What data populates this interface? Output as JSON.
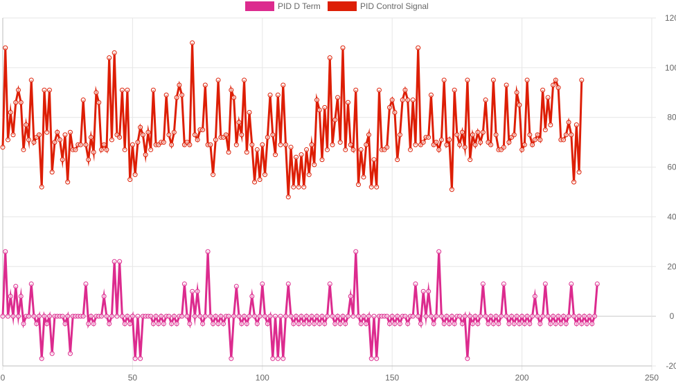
{
  "chart_data": {
    "type": "line",
    "title": "",
    "xlabel": "",
    "ylabel": "",
    "xlim": [
      0,
      250
    ],
    "ylim": [
      -20,
      120
    ],
    "x_ticks": [
      0,
      50,
      100,
      150,
      200,
      250
    ],
    "y_ticks": [
      -20,
      0,
      20,
      40,
      60,
      80,
      100,
      120
    ],
    "x_tick_labels": [
      "0",
      "50",
      "100",
      "150",
      "200",
      "250"
    ],
    "y_tick_labels": [
      "-20",
      "0",
      "20",
      "40",
      "60",
      "80",
      "100",
      "120"
    ],
    "grid": true,
    "legend_position": "top-center",
    "series": [
      {
        "name": "PID D Term",
        "color": "#dc2b8e",
        "values": [
          0,
          26,
          0,
          8,
          0,
          12,
          0,
          8,
          -3,
          0,
          0,
          13,
          0,
          -3,
          0,
          -17,
          0,
          -3,
          0,
          -15,
          0,
          0,
          0,
          0,
          -3,
          0,
          -15,
          0,
          0,
          0,
          0,
          0,
          13,
          -3,
          0,
          -3,
          0,
          0,
          0,
          8,
          0,
          -3,
          0,
          22,
          0,
          22,
          0,
          -3,
          0,
          -3,
          0,
          -17,
          0,
          -17,
          0,
          0,
          0,
          0,
          -3,
          0,
          -3,
          0,
          -3,
          0,
          0,
          -3,
          0,
          -3,
          0,
          0,
          13,
          0,
          -3,
          10,
          0,
          10,
          0,
          -3,
          0,
          26,
          0,
          -3,
          0,
          -3,
          0,
          -3,
          0,
          0,
          -17,
          0,
          12,
          0,
          -3,
          0,
          -3,
          0,
          8,
          0,
          -3,
          0,
          13,
          0,
          -3,
          0,
          -17,
          0,
          -17,
          0,
          -17,
          0,
          13,
          0,
          -3,
          0,
          -3,
          0,
          -3,
          0,
          -3,
          0,
          -3,
          0,
          -3,
          0,
          -3,
          0,
          13,
          0,
          -3,
          0,
          -3,
          0,
          -3,
          0,
          8,
          0,
          26,
          0,
          -3,
          0,
          -3,
          0,
          -17,
          0,
          -17,
          0,
          0,
          0,
          0,
          -3,
          0,
          -3,
          0,
          -3,
          0,
          0,
          -3,
          0,
          0,
          13,
          0,
          -3,
          10,
          0,
          10,
          0,
          -3,
          0,
          26,
          0,
          -3,
          0,
          -3,
          0,
          -3,
          0,
          0,
          -3,
          0,
          -17,
          0,
          -3,
          0,
          -3,
          0,
          13,
          0,
          -3,
          0,
          -3,
          0,
          -3,
          0,
          13,
          0,
          -3,
          0,
          -3,
          0,
          -3,
          0,
          -3,
          0,
          -3,
          0,
          8,
          0,
          -3,
          0,
          13,
          0,
          -3,
          0,
          -3,
          0,
          -3,
          0,
          -3,
          0,
          13,
          0,
          -3,
          0,
          -3,
          0,
          -3,
          0,
          -3,
          0,
          13
        ]
      },
      {
        "name": "PID Control Signal",
        "color": "#dd1e05",
        "values": [
          68,
          108,
          71,
          82,
          73,
          86,
          91,
          86,
          67,
          77,
          71,
          95,
          70,
          72,
          73,
          52,
          91,
          74,
          91,
          58,
          70,
          74,
          71,
          63,
          73,
          54,
          74,
          67,
          67,
          69,
          69,
          87,
          69,
          63,
          72,
          66,
          90,
          86,
          67,
          69,
          67,
          104,
          71,
          106,
          73,
          72,
          91,
          67,
          91,
          55,
          69,
          57,
          70,
          76,
          73,
          65,
          74,
          67,
          91,
          69,
          69,
          70,
          70,
          89,
          73,
          69,
          74,
          88,
          93,
          89,
          69,
          70,
          69,
          110,
          73,
          71,
          75,
          75,
          93,
          69,
          69,
          57,
          71,
          95,
          72,
          72,
          73,
          66,
          91,
          88,
          69,
          78,
          73,
          95,
          66,
          82,
          69,
          54,
          67,
          55,
          69,
          57,
          72,
          89,
          73,
          65,
          89,
          69,
          93,
          69,
          48,
          68,
          52,
          64,
          52,
          65,
          52,
          67,
          57,
          69,
          61,
          87,
          83,
          63,
          84,
          67,
          104,
          69,
          79,
          88,
          70,
          108,
          67,
          86,
          69,
          67,
          91,
          53,
          67,
          56,
          69,
          73,
          52,
          63,
          52,
          91,
          67,
          67,
          68,
          84,
          87,
          82,
          63,
          73,
          87,
          91,
          87,
          67,
          87,
          69,
          108,
          69,
          70,
          72,
          72,
          89,
          69,
          70,
          67,
          71,
          95,
          69,
          71,
          51,
          91,
          73,
          69,
          74,
          68,
          95,
          63,
          73,
          69,
          74,
          70,
          74,
          87,
          70,
          69,
          95,
          73,
          67,
          67,
          68,
          93,
          70,
          72,
          73,
          90,
          85,
          67,
          69,
          95,
          73,
          69,
          71,
          73,
          71,
          91,
          75,
          88,
          77,
          93,
          95,
          92,
          71,
          71,
          73,
          78,
          73,
          54,
          77,
          58,
          95
        ]
      }
    ]
  }
}
